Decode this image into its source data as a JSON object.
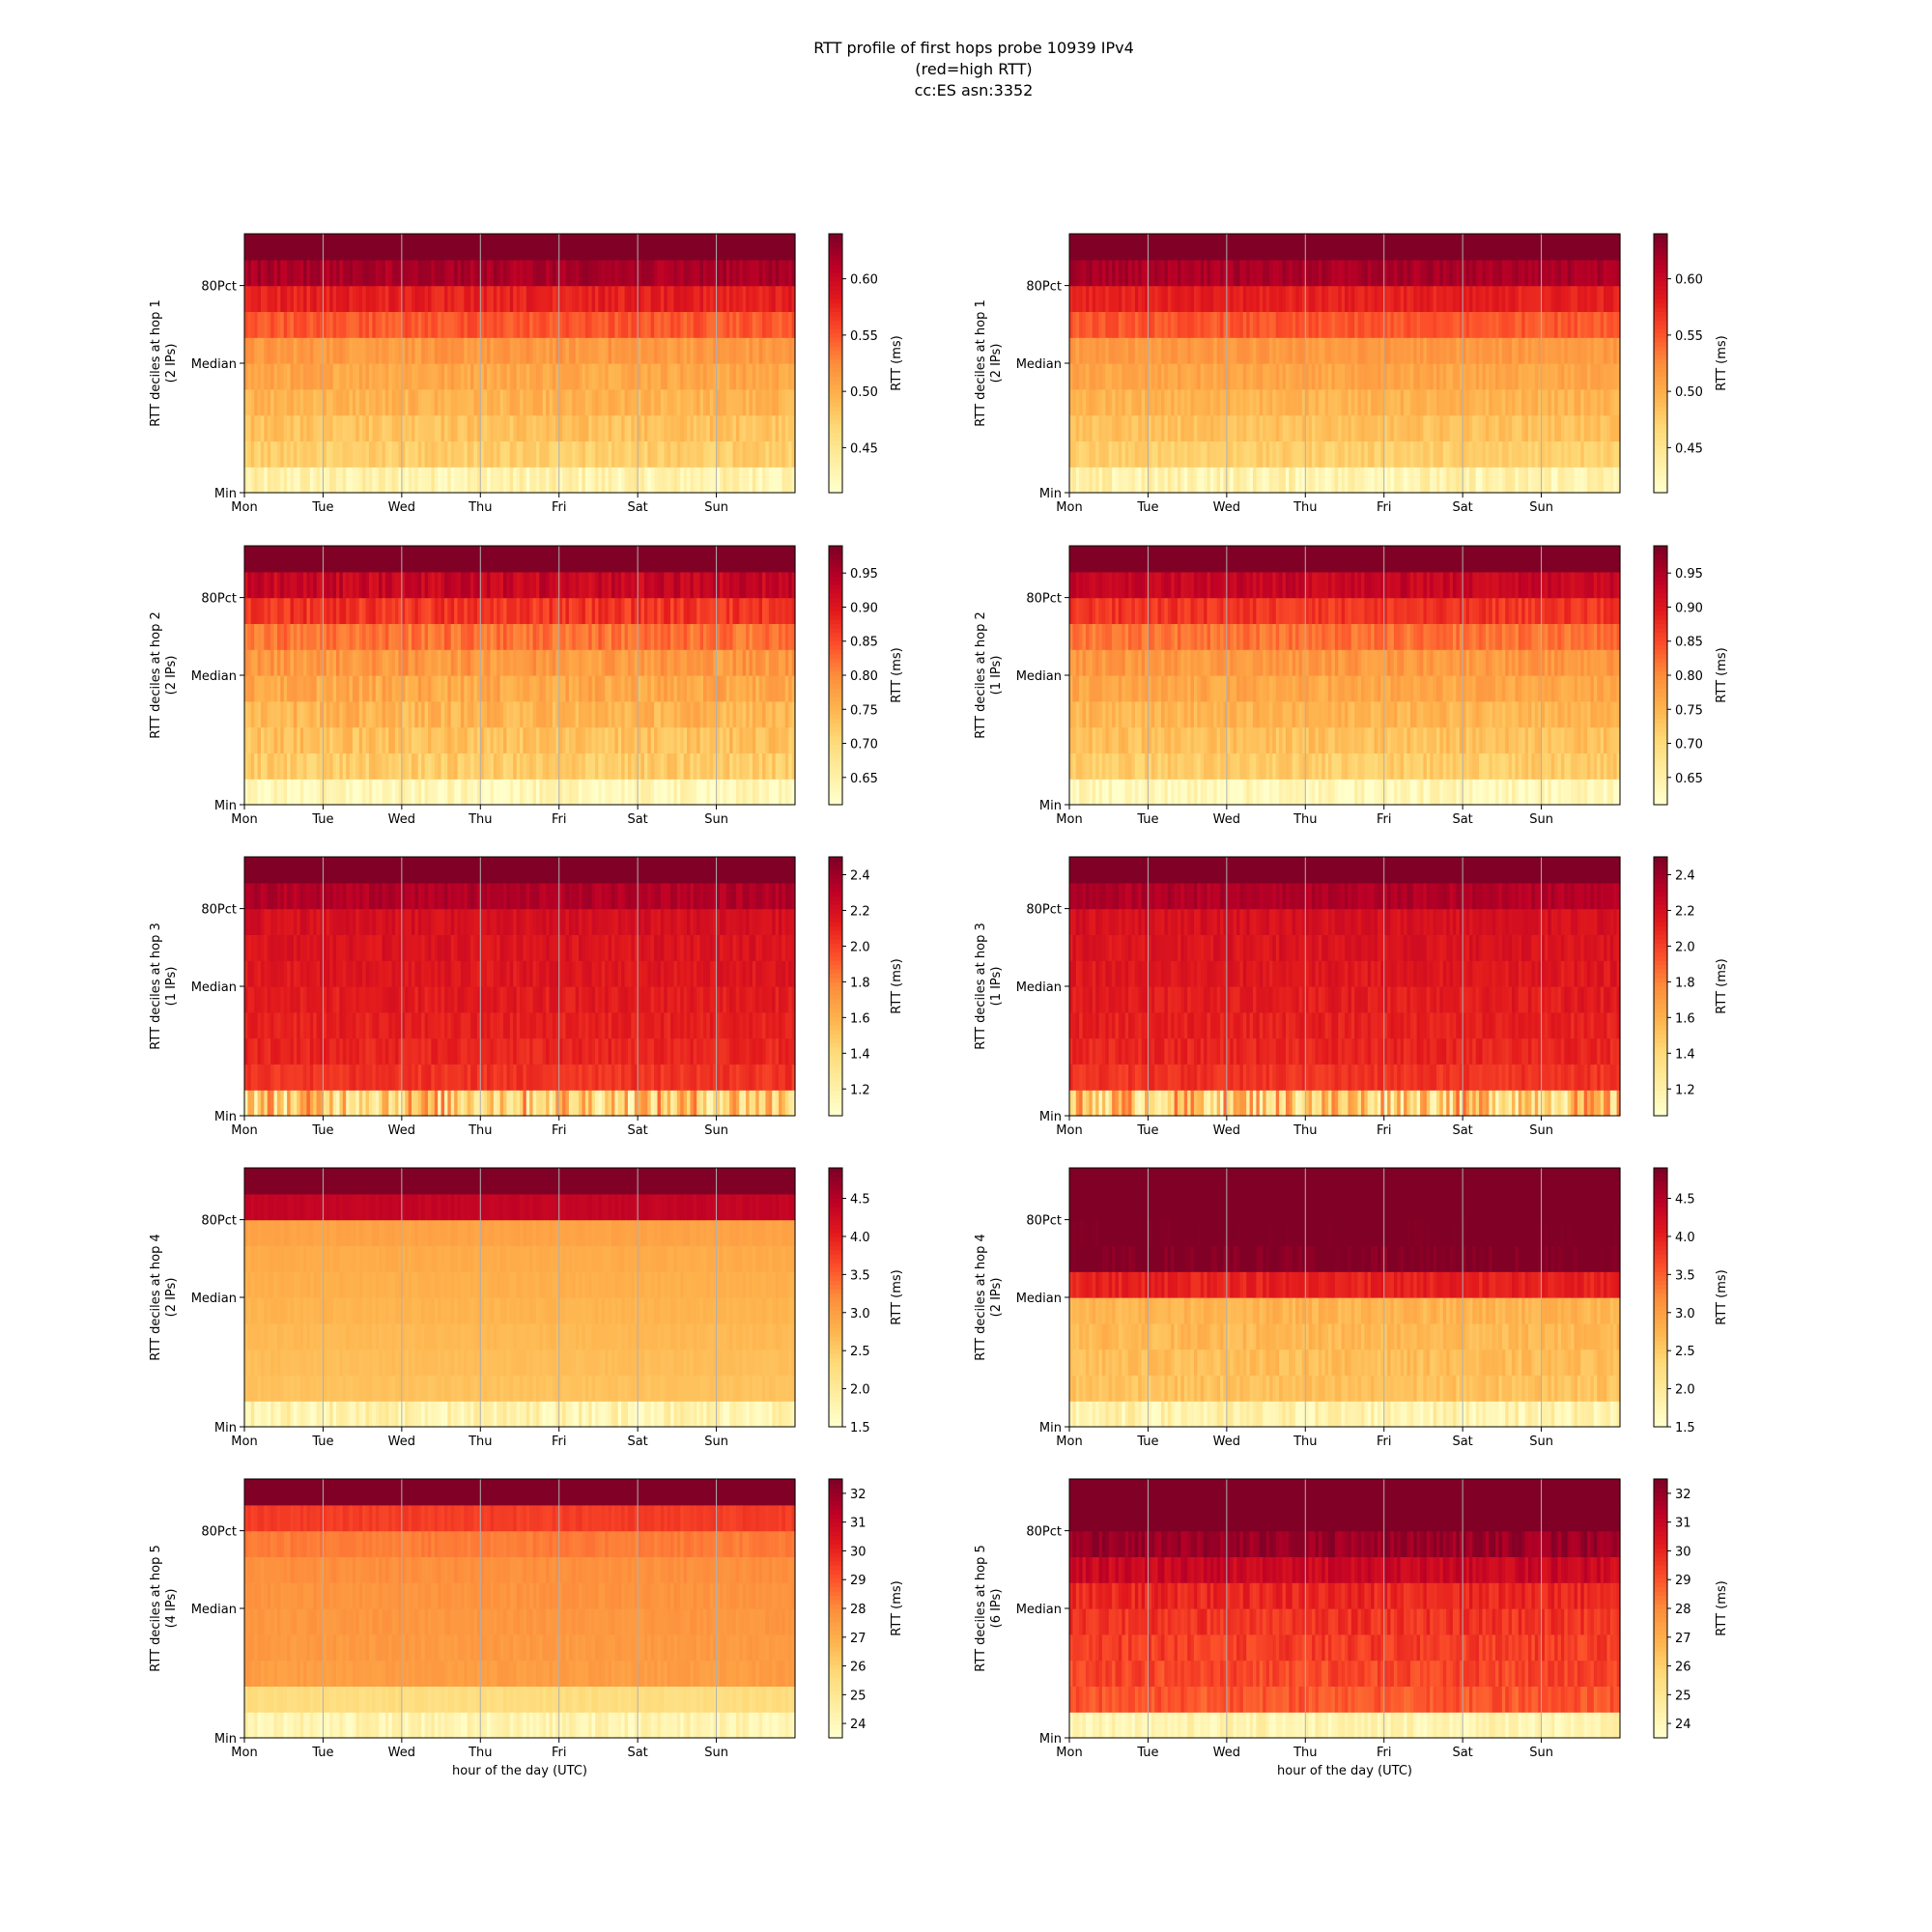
{
  "title": {
    "line1": "RTT profile of first hops probe 10939 IPv4",
    "line2": "(red=high RTT)",
    "line3": "cc:ES asn:3352"
  },
  "xlabel": "hour of the day (UTC)",
  "colorbar_label": "RTT (ms)",
  "colormap": [
    "#ffffcc",
    "#ffeda0",
    "#fed976",
    "#feb24c",
    "#fd8d3c",
    "#fc4e2a",
    "#e31a1c",
    "#bd0026",
    "#800026"
  ],
  "gridline_color": "#b0b0b0",
  "chart_data": [
    {
      "type": "heatmap",
      "hop": 1,
      "ylabel": "RTT deciles at hop 1",
      "ips": "(2 IPs)",
      "x_ticks": [
        "Mon",
        "Tue",
        "Wed",
        "Thu",
        "Fri",
        "Sat",
        "Sun"
      ],
      "y_ticks": [
        "Min",
        "Median",
        "80Pct"
      ],
      "color_range": [
        0.41,
        0.64
      ],
      "colorbar_ticks": [
        "0.45",
        "0.50",
        "0.55",
        "0.60"
      ],
      "decile_rtt_ms": [
        0.43,
        0.475,
        0.485,
        0.495,
        0.505,
        0.515,
        0.55,
        0.58,
        0.62,
        0.7
      ],
      "noise": 0.012,
      "min_row_noise": 0.02,
      "dips": []
    },
    {
      "type": "heatmap",
      "hop": 1,
      "ylabel": "RTT deciles at hop 1",
      "ips": "(2 IPs)",
      "x_ticks": [
        "Mon",
        "Tue",
        "Wed",
        "Thu",
        "Fri",
        "Sat",
        "Sun"
      ],
      "y_ticks": [
        "Min",
        "Median",
        "80Pct"
      ],
      "color_range": [
        0.41,
        0.64
      ],
      "colorbar_ticks": [
        "0.45",
        "0.50",
        "0.55",
        "0.60"
      ],
      "decile_rtt_ms": [
        0.43,
        0.475,
        0.485,
        0.495,
        0.505,
        0.515,
        0.55,
        0.58,
        0.62,
        0.7
      ],
      "noise": 0.01,
      "min_row_noise": 0.02,
      "dips": []
    },
    {
      "type": "heatmap",
      "hop": 2,
      "ylabel": "RTT deciles at hop 2",
      "ips": "(2 IPs)",
      "x_ticks": [
        "Mon",
        "Tue",
        "Wed",
        "Thu",
        "Fri",
        "Sat",
        "Sun"
      ],
      "y_ticks": [
        "Min",
        "Median",
        "80Pct"
      ],
      "color_range": [
        0.61,
        0.99
      ],
      "colorbar_ticks": [
        "0.65",
        "0.70",
        "0.75",
        "0.80",
        "0.85",
        "0.90",
        "0.95"
      ],
      "decile_rtt_ms": [
        0.63,
        0.72,
        0.735,
        0.75,
        0.765,
        0.785,
        0.82,
        0.87,
        0.93,
        1.05
      ],
      "noise": 0.025,
      "min_row_noise": 0.03,
      "dips": []
    },
    {
      "type": "heatmap",
      "hop": 2,
      "ylabel": "RTT deciles at hop 2",
      "ips": "(1 IPs)",
      "x_ticks": [
        "Mon",
        "Tue",
        "Wed",
        "Thu",
        "Fri",
        "Sat",
        "Sun"
      ],
      "y_ticks": [
        "Min",
        "Median",
        "80Pct"
      ],
      "color_range": [
        0.61,
        0.99
      ],
      "colorbar_ticks": [
        "0.65",
        "0.70",
        "0.75",
        "0.80",
        "0.85",
        "0.90",
        "0.95"
      ],
      "decile_rtt_ms": [
        0.63,
        0.72,
        0.735,
        0.75,
        0.765,
        0.785,
        0.82,
        0.87,
        0.93,
        1.05
      ],
      "noise": 0.02,
      "min_row_noise": 0.03,
      "dips": []
    },
    {
      "type": "heatmap",
      "hop": 3,
      "ylabel": "RTT deciles at hop 3",
      "ips": "(1 IPs)",
      "x_ticks": [
        "Mon",
        "Tue",
        "Wed",
        "Thu",
        "Fri",
        "Sat",
        "Sun"
      ],
      "y_ticks": [
        "Min",
        "Median",
        "80Pct"
      ],
      "color_range": [
        1.05,
        2.5
      ],
      "colorbar_ticks": [
        "1.2",
        "1.4",
        "1.6",
        "1.8",
        "2.0",
        "2.2",
        "2.4"
      ],
      "decile_rtt_ms": [
        1.5,
        2.05,
        2.1,
        2.12,
        2.14,
        2.16,
        2.18,
        2.2,
        2.35,
        2.6
      ],
      "noise": 0.06,
      "min_row_noise": 0.4,
      "dips": []
    },
    {
      "type": "heatmap",
      "hop": 3,
      "ylabel": "RTT deciles at hop 3",
      "ips": "(1 IPs)",
      "x_ticks": [
        "Mon",
        "Tue",
        "Wed",
        "Thu",
        "Fri",
        "Sat",
        "Sun"
      ],
      "y_ticks": [
        "Min",
        "Median",
        "80Pct"
      ],
      "color_range": [
        1.05,
        2.5
      ],
      "colorbar_ticks": [
        "1.2",
        "1.4",
        "1.6",
        "1.8",
        "2.0",
        "2.2",
        "2.4"
      ],
      "decile_rtt_ms": [
        1.5,
        2.05,
        2.1,
        2.12,
        2.14,
        2.16,
        2.18,
        2.2,
        2.35,
        2.6
      ],
      "noise": 0.06,
      "min_row_noise": 0.4,
      "dips": []
    },
    {
      "type": "heatmap",
      "hop": 4,
      "ylabel": "RTT deciles at hop 4",
      "ips": "(2 IPs)",
      "x_ticks": [
        "Mon",
        "Tue",
        "Wed",
        "Thu",
        "Fri",
        "Sat",
        "Sun"
      ],
      "y_ticks": [
        "Min",
        "Median",
        "80Pct"
      ],
      "color_range": [
        1.5,
        4.9
      ],
      "colorbar_ticks": [
        "1.5",
        "2.0",
        "2.5",
        "3.0",
        "3.5",
        "4.0",
        "4.5"
      ],
      "decile_rtt_ms": [
        1.8,
        2.6,
        2.65,
        2.7,
        2.75,
        2.8,
        2.85,
        2.95,
        4.4,
        5.2
      ],
      "noise": 0.05,
      "min_row_noise": 0.3,
      "dips": []
    },
    {
      "type": "heatmap",
      "hop": 4,
      "ylabel": "RTT deciles at hop 4",
      "ips": "(2 IPs)",
      "x_ticks": [
        "Mon",
        "Tue",
        "Wed",
        "Thu",
        "Fri",
        "Sat",
        "Sun"
      ],
      "y_ticks": [
        "Min",
        "Median",
        "80Pct"
      ],
      "color_range": [
        1.5,
        4.9
      ],
      "colorbar_ticks": [
        "1.5",
        "2.0",
        "2.5",
        "3.0",
        "3.5",
        "4.0",
        "4.5"
      ],
      "decile_rtt_ms": [
        1.8,
        2.6,
        2.65,
        2.7,
        2.75,
        4.0,
        4.9,
        5.0,
        5.1,
        5.2
      ],
      "noise": 0.15,
      "min_row_noise": 0.3,
      "dips": []
    },
    {
      "type": "heatmap",
      "hop": 5,
      "ylabel": "RTT deciles at hop 5",
      "ips": "(4 IPs)",
      "x_ticks": [
        "Mon",
        "Tue",
        "Wed",
        "Thu",
        "Fri",
        "Sat",
        "Sun"
      ],
      "y_ticks": [
        "Min",
        "Median",
        "80Pct"
      ],
      "color_range": [
        23.5,
        32.5
      ],
      "colorbar_ticks": [
        "24",
        "25",
        "26",
        "27",
        "28",
        "29",
        "30",
        "31",
        "32"
      ],
      "decile_rtt_ms": [
        24.2,
        25.5,
        27.5,
        27.6,
        27.7,
        27.8,
        27.9,
        28.3,
        29.5,
        33.0
      ],
      "noise": 0.2,
      "min_row_noise": 0.6,
      "dips": []
    },
    {
      "type": "heatmap",
      "hop": 5,
      "ylabel": "RTT deciles at hop 5",
      "ips": "(6 IPs)",
      "x_ticks": [
        "Mon",
        "Tue",
        "Wed",
        "Thu",
        "Fri",
        "Sat",
        "Sun"
      ],
      "y_ticks": [
        "Min",
        "Median",
        "80Pct"
      ],
      "color_range": [
        23.5,
        32.5
      ],
      "colorbar_ticks": [
        "24",
        "25",
        "26",
        "27",
        "28",
        "29",
        "30",
        "31",
        "32"
      ],
      "decile_rtt_ms": [
        24.2,
        29.0,
        29.3,
        29.5,
        29.7,
        30.0,
        31.0,
        32.0,
        33.0,
        33.5
      ],
      "noise": 0.5,
      "min_row_noise": 0.6,
      "dips": []
    }
  ]
}
